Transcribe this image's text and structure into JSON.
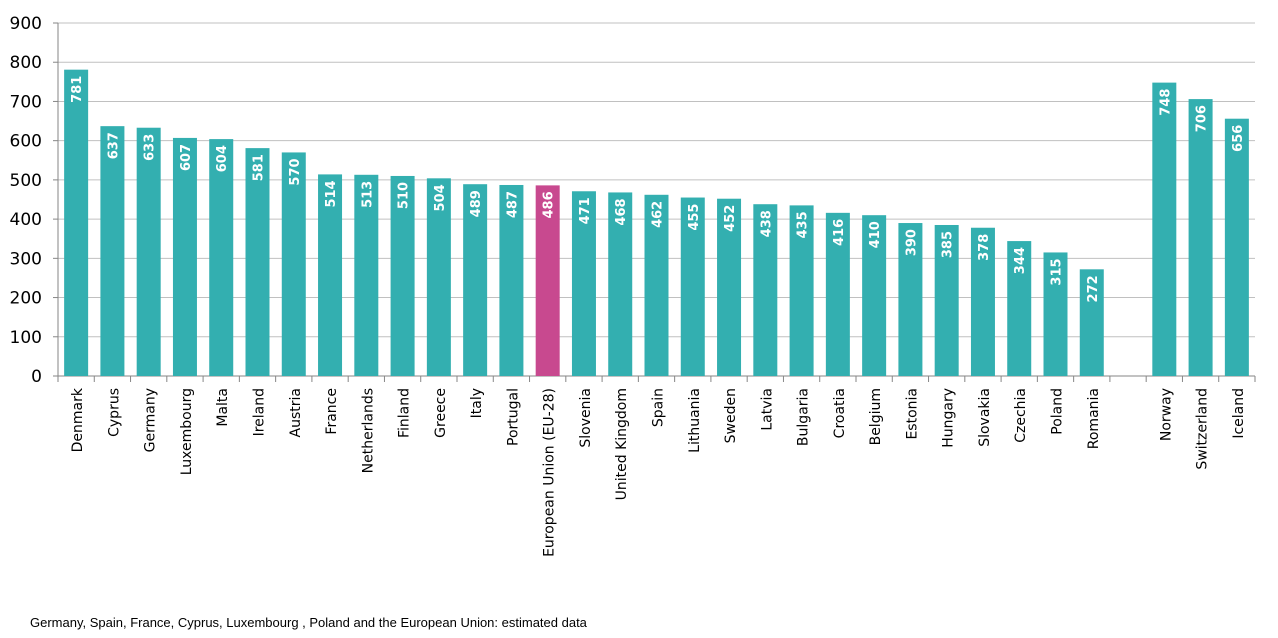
{
  "chart_data": {
    "type": "bar",
    "categories": [
      "Denmark",
      "Cyprus",
      "Germany",
      "Luxembourg",
      "Malta",
      "Ireland",
      "Austria",
      "France",
      "Netherlands",
      "Finland",
      "Greece",
      "Italy",
      "Portugal",
      "European Union (EU-28)",
      "Slovenia",
      "United Kingdom",
      "Spain",
      "Lithuania",
      "Sweden",
      "Latvia",
      "Bulgaria",
      "Croatia",
      "Belgium",
      "Estonia",
      "Hungary",
      "Slovakia",
      "Czechia",
      "Poland",
      "Romania",
      "",
      "Norway",
      "Switzerland",
      "Iceland"
    ],
    "values": [
      781,
      637,
      633,
      607,
      604,
      581,
      570,
      514,
      513,
      510,
      504,
      489,
      487,
      486,
      471,
      468,
      462,
      455,
      452,
      438,
      435,
      416,
      410,
      390,
      385,
      378,
      344,
      315,
      272,
      null,
      748,
      706,
      656
    ],
    "highlight": "European Union (EU-28)",
    "colors": {
      "bar": "#33afb0",
      "highlight": "#c8498f",
      "grid": "#c0c0c0",
      "axis": "#868686"
    },
    "ylim": [
      0,
      900
    ],
    "yticks": [
      0,
      100,
      200,
      300,
      400,
      500,
      600,
      700,
      800,
      900
    ],
    "grid": true,
    "data_labels": "inside-top-rotated",
    "title": "",
    "xlabel": "",
    "ylabel": ""
  },
  "footnote": "Germany, Spain,  France, Cyprus, Luxembourg , Poland and the European Union: estimated data"
}
